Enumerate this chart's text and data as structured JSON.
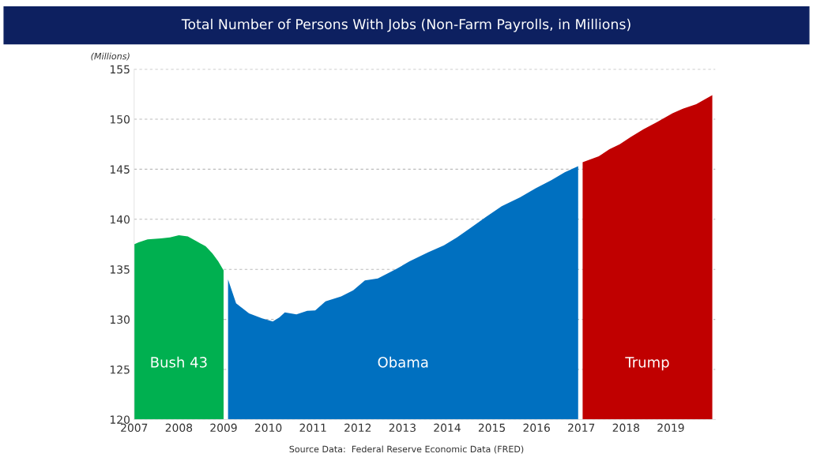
{
  "chart_data": {
    "type": "area",
    "title": "Total Number of Persons With Jobs (Non-Farm Payrolls, in Millions)",
    "ylabel": "(Millions)",
    "annotations": [
      "Source Data:  Federal Reserve Economic Data (FRED)"
    ],
    "xlim": [
      2007,
      2020
    ],
    "xticks": [
      2007,
      2008,
      2009,
      2010,
      2011,
      2012,
      2013,
      2014,
      2015,
      2016,
      2017,
      2018,
      2019
    ],
    "ylim": [
      120,
      155
    ],
    "yticks": [
      120,
      125,
      130,
      135,
      140,
      145,
      150,
      155
    ],
    "grid": "y",
    "legend": false,
    "series": [
      {
        "name": "Bush 43",
        "color": "#00b050",
        "x": [
          2007.0,
          2007.1,
          2007.3,
          2007.6,
          2007.8,
          2008.0,
          2008.2,
          2008.4,
          2008.6,
          2008.75,
          2008.88,
          2009.0
        ],
        "values": [
          137.5,
          137.7,
          138.0,
          138.1,
          138.2,
          138.4,
          138.3,
          137.8,
          137.3,
          136.6,
          135.8,
          134.9
        ]
      },
      {
        "name": "Obama",
        "color": "#0070c0",
        "x": [
          2009.1,
          2009.28,
          2009.57,
          2009.86,
          2010.1,
          2010.25,
          2010.37,
          2010.63,
          2010.87,
          2011.05,
          2011.28,
          2011.63,
          2011.9,
          2012.16,
          2012.45,
          2012.87,
          2013.16,
          2013.57,
          2013.93,
          2014.22,
          2014.51,
          2014.87,
          2015.22,
          2015.63,
          2015.98,
          2016.33,
          2016.63,
          2016.93
        ],
        "values": [
          134.0,
          131.6,
          130.6,
          130.1,
          129.8,
          130.2,
          130.7,
          130.5,
          130.85,
          130.9,
          131.8,
          132.3,
          132.9,
          133.9,
          134.1,
          135.05,
          135.8,
          136.7,
          137.4,
          138.2,
          139.1,
          140.25,
          141.3,
          142.2,
          143.1,
          143.9,
          144.7,
          145.3
        ]
      },
      {
        "name": "Trump",
        "color": "#c00000",
        "x": [
          2017.03,
          2017.39,
          2017.63,
          2017.86,
          2018.1,
          2018.39,
          2018.69,
          2019.04,
          2019.27,
          2019.57,
          2019.93
        ],
        "values": [
          145.7,
          146.3,
          147.0,
          147.5,
          148.2,
          149.0,
          149.7,
          150.6,
          151.05,
          151.5,
          152.4
        ]
      }
    ]
  }
}
